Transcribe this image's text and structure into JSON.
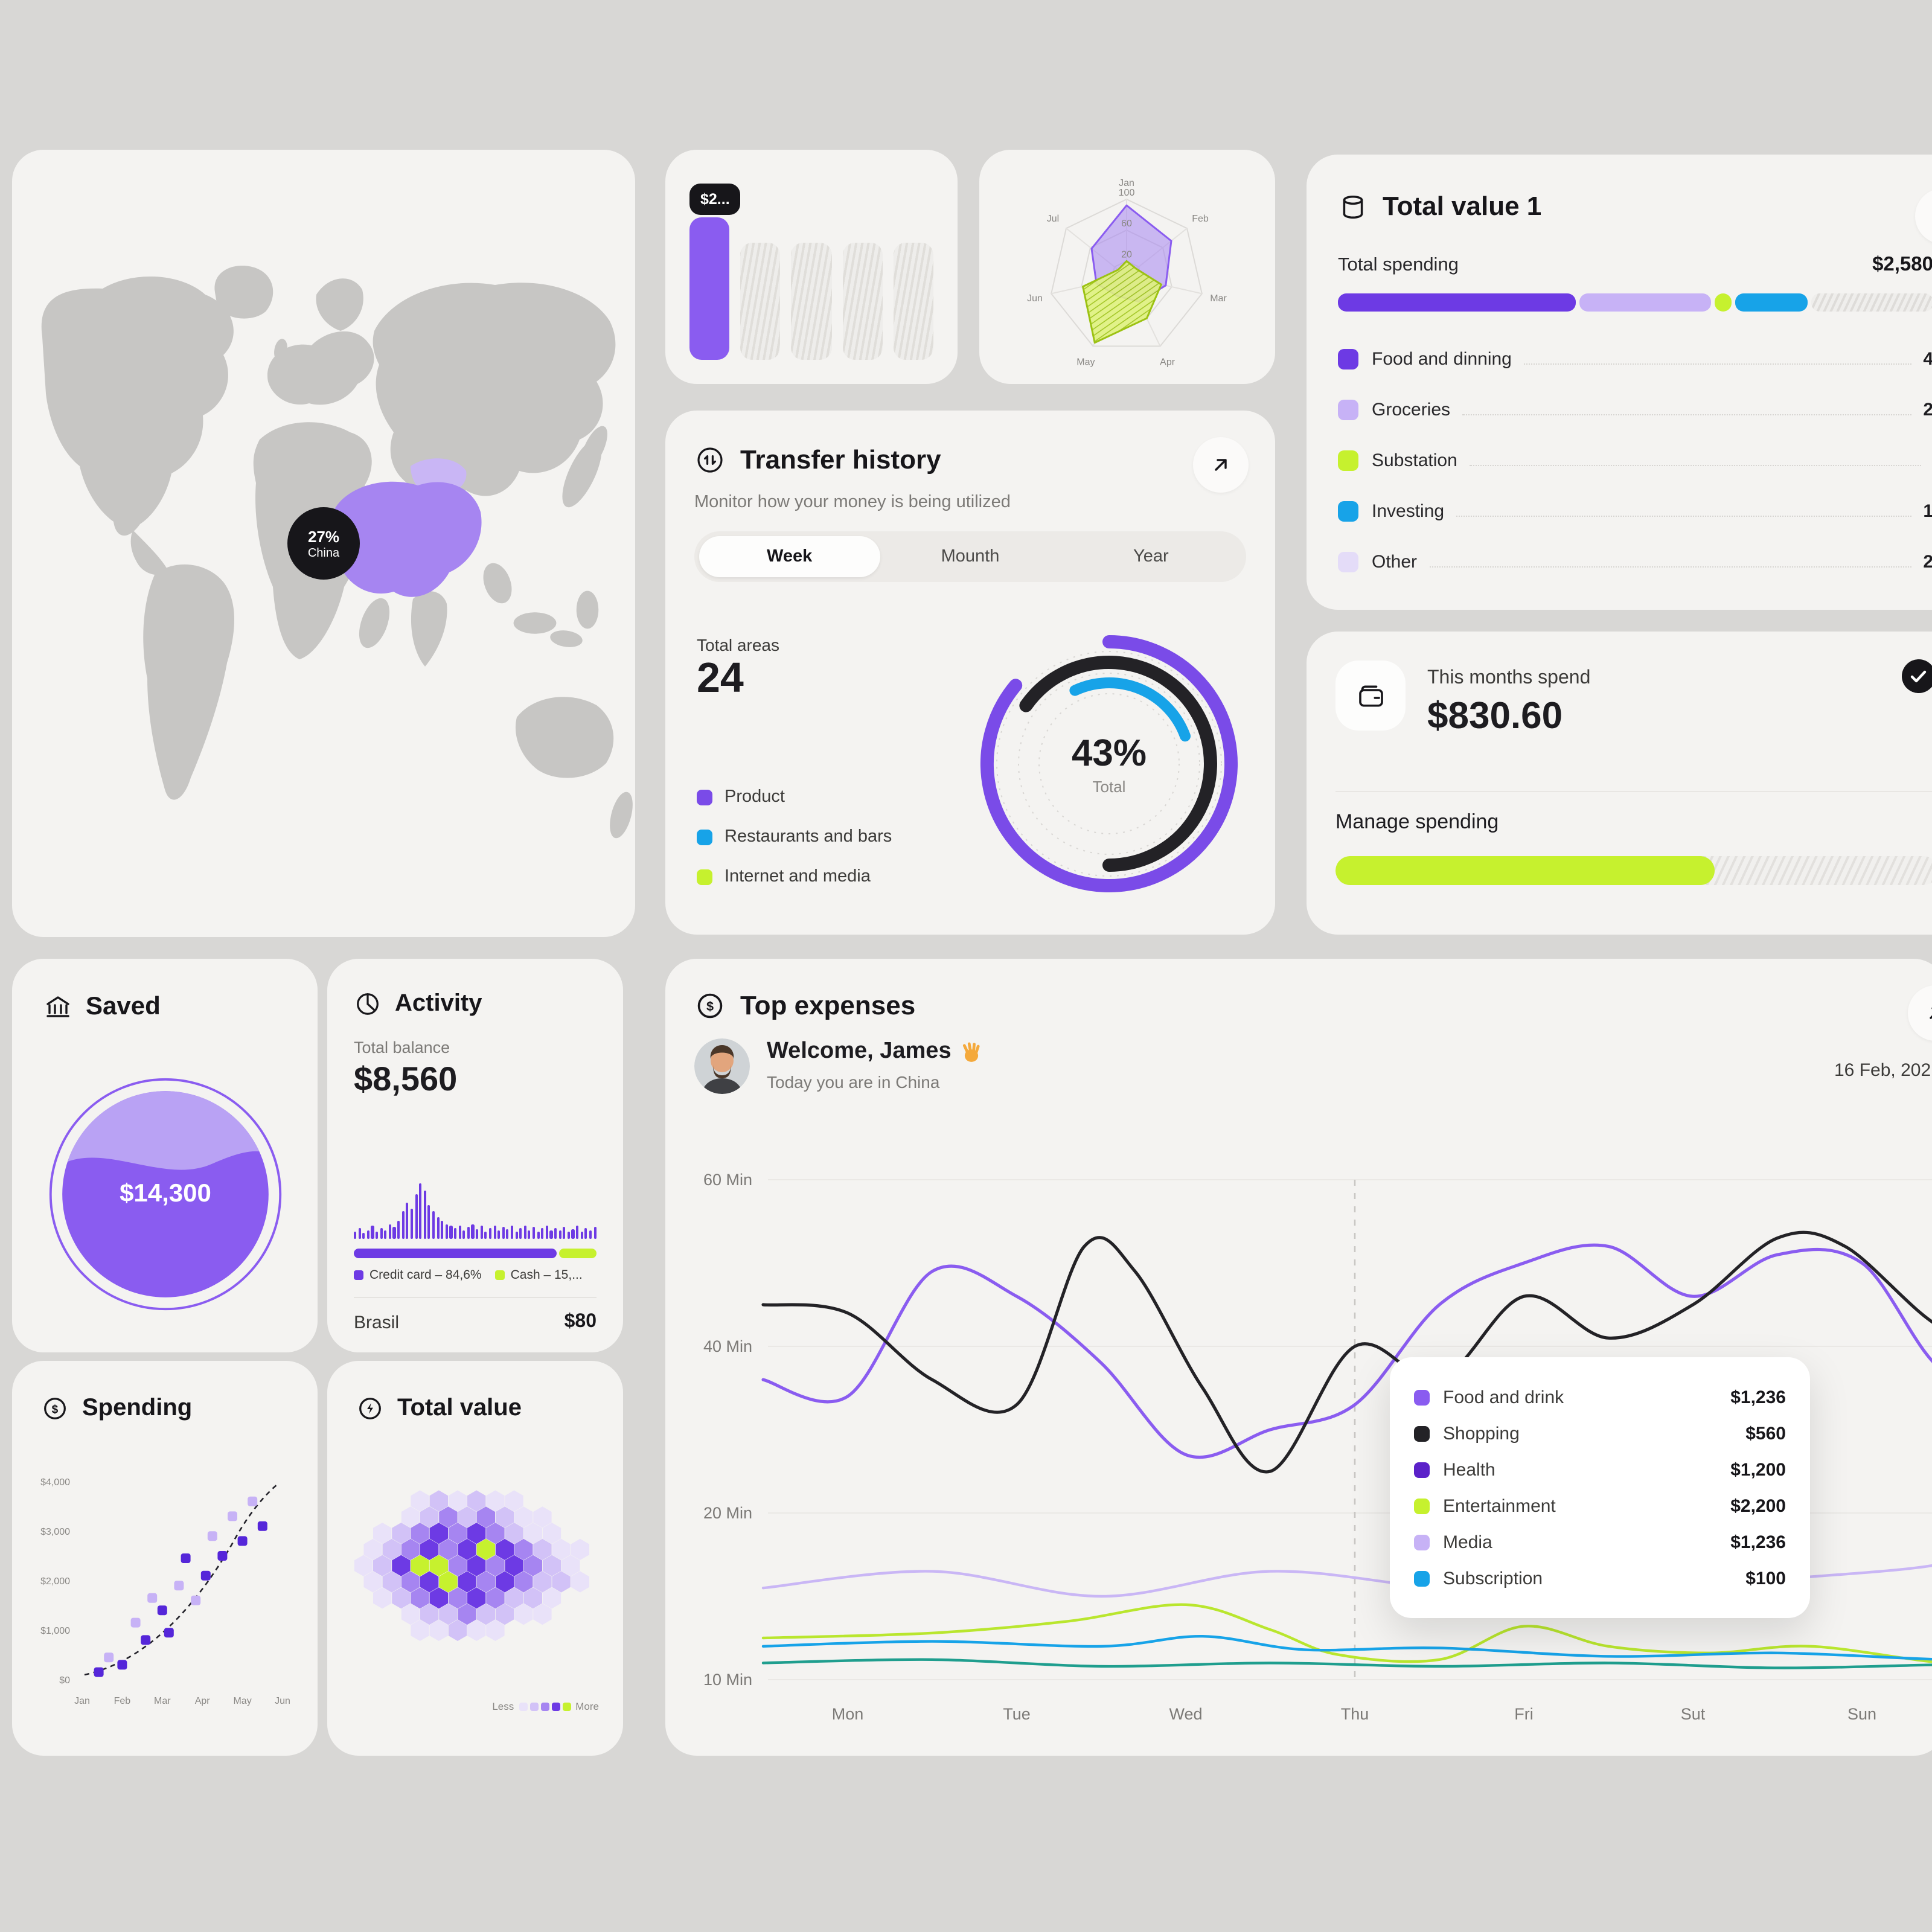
{
  "theme": {
    "purple": "#7a4be8",
    "purple_mid": "#8a5cf0",
    "purple_light": "#c7b2f6",
    "purple_pale": "#e4dcf8",
    "purple_deep": "#5b21c9",
    "lime": "#c6f12e",
    "blue": "#17a3e8",
    "dark": "#17161a",
    "card_bg": "#f4f3f1",
    "page_bg": "#d8d7d5"
  },
  "map_card": {
    "badge_percent": "27%",
    "badge_country": "China",
    "highlighted_country": "China"
  },
  "mini_bars": {
    "badge": "$2..."
  },
  "total_value1": {
    "title": "Total value 1",
    "spending_label": "Total spending",
    "spending_value": "$2,580",
    "bar_segments": [
      {
        "color": "#6d3ae4",
        "pct": 40
      },
      {
        "color": "#c7b2f6",
        "pct": 22
      },
      {
        "color": "#c6f12e",
        "pct": 3
      },
      {
        "color": "#17a3e8",
        "pct": 12
      }
    ],
    "legend": [
      {
        "label": "Food and dinning",
        "value": "4",
        "color": "#6d3ae4"
      },
      {
        "label": "Groceries",
        "value": "2",
        "color": "#c7b2f6"
      },
      {
        "label": "Substation",
        "value": "",
        "color": "#c6f12e"
      },
      {
        "label": "Investing",
        "value": "1",
        "color": "#17a3e8"
      },
      {
        "label": "Other",
        "value": "2",
        "color": "#e4dcf8"
      }
    ]
  },
  "transfer": {
    "title": "Transfer history",
    "subtitle": "Monitor how your money is being utilized",
    "tabs": [
      "Week",
      "Mounth",
      "Year"
    ],
    "active_tab": "Week",
    "total_areas_label": "Total areas",
    "total_areas_value": "24",
    "legend": [
      {
        "label": "Product",
        "color": "#7a4be8"
      },
      {
        "label": "Restaurants and bars",
        "color": "#17a3e8"
      },
      {
        "label": "Internet and media",
        "color": "#c6f12e"
      }
    ],
    "donut_percent": "43%",
    "donut_caption": "Total"
  },
  "months_spend": {
    "title": "This months spend",
    "amount": "$830.60",
    "manage_label": "Manage spending",
    "progress_pct": 63
  },
  "saved": {
    "title": "Saved",
    "amount": "$14,300"
  },
  "activity": {
    "title": "Activity",
    "balance_label": "Total balance",
    "balance_value": "$8,560",
    "split": [
      {
        "label": "Credit card – 84,6%",
        "color": "#6d3ae4",
        "pct": 84.6
      },
      {
        "label": "Cash – 15,...",
        "color": "#c6f12e",
        "pct": 15.4
      }
    ],
    "row_label": "Brasil",
    "row_value": "$80"
  },
  "spending_card": {
    "title": "Spending"
  },
  "hex_card": {
    "title": "Total value",
    "legend_less": "Less",
    "legend_more": "More"
  },
  "top_expenses": {
    "title": "Top expenses",
    "greeting": "Welcome, James",
    "greeting_emoji": "👋",
    "subtitle": "Today you are in China",
    "date": "16 Feb, 202",
    "tooltip": [
      {
        "label": "Food and drink",
        "value": "$1,236",
        "color": "#8a5cf0"
      },
      {
        "label": "Shopping",
        "value": "$560",
        "color": "#232226"
      },
      {
        "label": "Health",
        "value": "$1,200",
        "color": "#5b21c9"
      },
      {
        "label": "Entertainment",
        "value": "$2,200",
        "color": "#c6f12e"
      },
      {
        "label": "Media",
        "value": "$1,236",
        "color": "#c7b2f6"
      },
      {
        "label": "Subscription",
        "value": "$100",
        "color": "#17a3e8"
      }
    ]
  },
  "chart_data": [
    {
      "id": "mini-bars",
      "type": "bar",
      "title": "$2...",
      "bars": [
        {
          "style": "solid",
          "color": "#8a5cf0",
          "h": 1.0
        },
        {
          "style": "hatch",
          "h": 0.82
        },
        {
          "style": "hatch",
          "h": 0.82
        },
        {
          "style": "hatch",
          "h": 0.82
        },
        {
          "style": "hatch",
          "h": 0.82
        }
      ]
    },
    {
      "id": "radar",
      "type": "radar",
      "axes": [
        "Jan",
        "Feb",
        "Mar",
        "Apr",
        "May",
        "Jun",
        "Jul"
      ],
      "rings": [
        20,
        60,
        100
      ],
      "max": 100,
      "series": [
        {
          "name": "series-purple",
          "color": "#8a5cf0",
          "fill": "#a685f1",
          "opacity": 0.55,
          "values": [
            92,
            74,
            52,
            36,
            28,
            40,
            58
          ]
        },
        {
          "name": "series-lime",
          "color": "#9cc213",
          "fill": "hatch-lime",
          "opacity": 0.9,
          "values": [
            20,
            16,
            46,
            60,
            95,
            58,
            14
          ]
        }
      ]
    },
    {
      "id": "transfer-donut",
      "type": "donut",
      "percent": 43,
      "caption": "Total",
      "arcs": [
        {
          "color": "#7a4be8",
          "r": 101,
          "start": 0,
          "sweep": 310,
          "w": 11
        },
        {
          "color": "#232226",
          "r": 84,
          "start": -55,
          "sweep": 235,
          "w": 11
        },
        {
          "color": "#17a3e8",
          "r": 67,
          "start": -25,
          "sweep": 95,
          "w": 9
        }
      ]
    },
    {
      "id": "activity-spark",
      "type": "bar",
      "color": "#6d3ae4",
      "values": [
        0.14,
        0.2,
        0.11,
        0.16,
        0.24,
        0.13,
        0.2,
        0.15,
        0.27,
        0.22,
        0.33,
        0.5,
        0.66,
        0.54,
        0.8,
        1,
        0.86,
        0.62,
        0.5,
        0.4,
        0.32,
        0.27,
        0.23,
        0.19,
        0.25,
        0.16,
        0.21,
        0.27,
        0.18,
        0.23,
        0.14,
        0.2,
        0.25,
        0.15,
        0.21,
        0.17,
        0.23,
        0.13,
        0.19,
        0.25,
        0.16,
        0.21,
        0.14,
        0.19,
        0.23,
        0.15,
        0.2,
        0.16,
        0.22,
        0.13,
        0.18,
        0.23,
        0.14,
        0.19,
        0.16,
        0.21
      ]
    },
    {
      "id": "spending-scatter",
      "type": "scatter",
      "x_labels": [
        "Jan",
        "Feb",
        "Mar",
        "Apr",
        "May",
        "Jun"
      ],
      "y_ticks": [
        "$4,000",
        "$3,000",
        "$2,000",
        "$1,000",
        "$0"
      ],
      "ylim": [
        0,
        4000
      ],
      "colors": {
        "dark": "#5526d9",
        "light": "#c7b2f6"
      },
      "points": [
        {
          "x": 0.5,
          "y": 150,
          "shade": "dark"
        },
        {
          "x": 0.8,
          "y": 450,
          "shade": "light"
        },
        {
          "x": 1.2,
          "y": 300,
          "shade": "dark"
        },
        {
          "x": 1.6,
          "y": 1150,
          "shade": "light"
        },
        {
          "x": 1.9,
          "y": 800,
          "shade": "dark"
        },
        {
          "x": 2.1,
          "y": 1650,
          "shade": "light"
        },
        {
          "x": 2.4,
          "y": 1400,
          "shade": "dark"
        },
        {
          "x": 2.6,
          "y": 950,
          "shade": "dark"
        },
        {
          "x": 2.9,
          "y": 1900,
          "shade": "light"
        },
        {
          "x": 3.1,
          "y": 2450,
          "shade": "dark"
        },
        {
          "x": 3.4,
          "y": 1600,
          "shade": "light"
        },
        {
          "x": 3.7,
          "y": 2100,
          "shade": "dark"
        },
        {
          "x": 3.9,
          "y": 2900,
          "shade": "light"
        },
        {
          "x": 4.2,
          "y": 2500,
          "shade": "dark"
        },
        {
          "x": 4.5,
          "y": 3300,
          "shade": "light"
        },
        {
          "x": 4.8,
          "y": 2800,
          "shade": "dark"
        },
        {
          "x": 5.1,
          "y": 3600,
          "shade": "light"
        },
        {
          "x": 5.4,
          "y": 3100,
          "shade": "dark"
        }
      ],
      "trend": "rising dashed curve"
    },
    {
      "id": "hex-map",
      "type": "heatmap",
      "palette": [
        "#e9e2f9",
        "#d2c2f7",
        "#a685f1",
        "#6d3ae4",
        "#c6f12e"
      ],
      "cells": [
        [
          -1,
          -1,
          -1,
          0,
          1,
          0,
          1,
          0,
          0,
          -1,
          -1,
          -1,
          -1
        ],
        [
          -1,
          -1,
          0,
          1,
          2,
          1,
          2,
          1,
          0,
          0,
          -1,
          -1,
          -1
        ],
        [
          -1,
          0,
          1,
          2,
          3,
          2,
          3,
          2,
          1,
          0,
          0,
          -1,
          -1
        ],
        [
          0,
          1,
          2,
          3,
          2,
          3,
          4,
          3,
          2,
          1,
          0,
          0,
          -1
        ],
        [
          0,
          1,
          3,
          4,
          4,
          2,
          3,
          2,
          3,
          2,
          1,
          0,
          -1
        ],
        [
          0,
          1,
          2,
          3,
          4,
          3,
          2,
          3,
          2,
          1,
          1,
          0,
          -1
        ],
        [
          -1,
          0,
          1,
          2,
          3,
          2,
          3,
          2,
          1,
          1,
          0,
          -1,
          -1
        ],
        [
          -1,
          -1,
          0,
          1,
          1,
          2,
          1,
          1,
          0,
          0,
          -1,
          -1,
          -1
        ],
        [
          -1,
          -1,
          -1,
          0,
          0,
          1,
          0,
          0,
          -1,
          -1,
          -1,
          -1,
          -1
        ]
      ]
    },
    {
      "id": "expenses-lines",
      "type": "line",
      "x_labels": [
        "Mon",
        "Tue",
        "Wed",
        "Thu",
        "Fri",
        "Sut",
        "Sun"
      ],
      "y_ticks": [
        10,
        20,
        40,
        60
      ],
      "y_tick_labels": [
        "60 Min",
        "40 Min",
        "20 Min",
        "10 Min"
      ],
      "marker_day": "Thu",
      "series": [
        {
          "name": "Food and drink",
          "color": "#8a5cf0",
          "width": 2.6,
          "points": [
            [
              0,
              36
            ],
            [
              0.5,
              34
            ],
            [
              1,
              49
            ],
            [
              1.5,
              46
            ],
            [
              2,
              38
            ],
            [
              2.5,
              27
            ],
            [
              3,
              30
            ],
            [
              3.5,
              33
            ],
            [
              4,
              45
            ],
            [
              4.5,
              50
            ],
            [
              5,
              52
            ],
            [
              5.5,
              46
            ],
            [
              6,
              51
            ],
            [
              6.5,
              50
            ],
            [
              7,
              37
            ],
            [
              7.4,
              45
            ]
          ]
        },
        {
          "name": "Shopping",
          "color": "#232226",
          "width": 2.6,
          "points": [
            [
              0,
              45
            ],
            [
              0.5,
              44
            ],
            [
              1,
              36
            ],
            [
              1.5,
              33
            ],
            [
              1.9,
              52
            ],
            [
              2.2,
              49
            ],
            [
              2.6,
              35
            ],
            [
              3,
              25
            ],
            [
              3.5,
              40
            ],
            [
              4,
              36
            ],
            [
              4.5,
              46
            ],
            [
              5,
              41
            ],
            [
              5.5,
              45
            ],
            [
              6,
              53
            ],
            [
              6.4,
              52
            ],
            [
              7,
              42
            ],
            [
              7.4,
              45
            ]
          ]
        },
        {
          "name": "Media",
          "color": "#c9b6f5",
          "width": 2.2,
          "points": [
            [
              0,
              15.5
            ],
            [
              1,
              16.5
            ],
            [
              2,
              15
            ],
            [
              3,
              16.5
            ],
            [
              4,
              15.5
            ],
            [
              5,
              15
            ],
            [
              6,
              16
            ],
            [
              7,
              17
            ],
            [
              7.4,
              19
            ]
          ]
        },
        {
          "name": "Entertainment",
          "color": "#b9e62e",
          "width": 2.2,
          "points": [
            [
              0,
              12.5
            ],
            [
              1,
              12.8
            ],
            [
              1.8,
              13.5
            ],
            [
              2.5,
              14.5
            ],
            [
              3,
              13
            ],
            [
              3.4,
              11.5
            ],
            [
              4,
              11.2
            ],
            [
              4.5,
              13.2
            ],
            [
              5,
              12
            ],
            [
              5.6,
              11.6
            ],
            [
              6.2,
              12
            ],
            [
              7,
              11
            ],
            [
              7.4,
              11.4
            ]
          ]
        },
        {
          "name": "Subscription",
          "color": "#17a3e8",
          "width": 2.2,
          "points": [
            [
              0,
              12
            ],
            [
              1,
              12.3
            ],
            [
              2,
              12
            ],
            [
              2.6,
              12.6
            ],
            [
              3.2,
              11.8
            ],
            [
              4,
              11.9
            ],
            [
              5,
              11.4
            ],
            [
              6,
              11.6
            ],
            [
              7,
              11.2
            ],
            [
              7.4,
              11.4
            ]
          ]
        },
        {
          "name": "Health",
          "color": "#1f9e8e",
          "width": 2.2,
          "points": [
            [
              0,
              11
            ],
            [
              1,
              11.2
            ],
            [
              2,
              10.8
            ],
            [
              3,
              11
            ],
            [
              4,
              10.8
            ],
            [
              5,
              11
            ],
            [
              6,
              10.7
            ],
            [
              7,
              10.9
            ],
            [
              7.4,
              10.8
            ]
          ]
        }
      ]
    }
  ]
}
